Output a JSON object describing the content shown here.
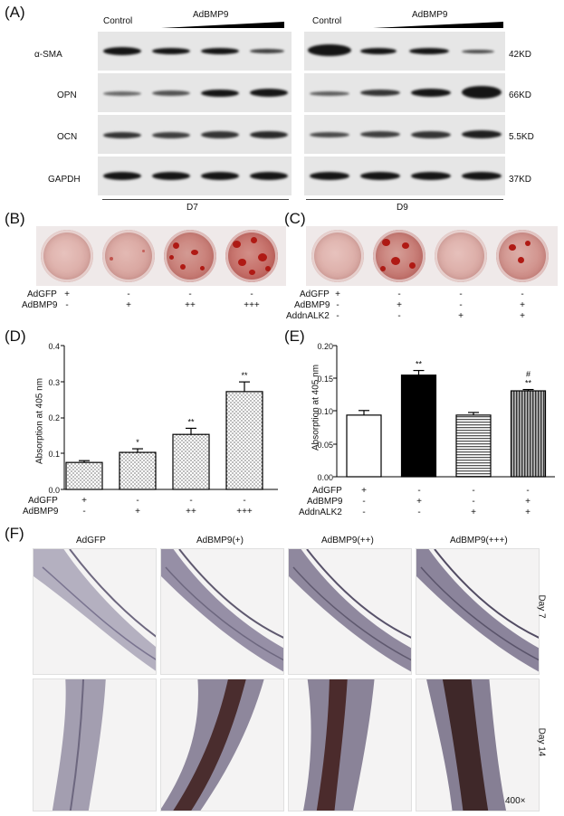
{
  "panel_labels": {
    "A": "(A)",
    "B": "(B)",
    "C": "(C)",
    "D": "(D)",
    "E": "(E)",
    "F": "(F)"
  },
  "western_blot": {
    "control_label": "Control",
    "treatment_label": "AdBMP9",
    "proteins": [
      "α-SMA",
      "OPN",
      "OCN",
      "GAPDH"
    ],
    "sizes": [
      "42KD",
      "66KD",
      "5.5KD",
      "37KD"
    ],
    "days": [
      "D7",
      "D9"
    ]
  },
  "row_labels": {
    "adgfp": "AdGFP",
    "adbmp9": "AdBMP9",
    "addnalk2": "AddnALK2"
  },
  "stain_B": {
    "adgfp": [
      "+",
      "-",
      "-",
      "-"
    ],
    "adbmp9": [
      "-",
      "+",
      "++",
      "+++"
    ]
  },
  "stain_C": {
    "adgfp": [
      "+",
      "-",
      "-",
      "-"
    ],
    "adbmp9": [
      "-",
      "+",
      "-",
      "+"
    ],
    "addnalk2": [
      "-",
      "-",
      "+",
      "+"
    ]
  },
  "chart_data": [
    {
      "panel": "D",
      "type": "bar",
      "ylabel": "Absorption at 405 nm",
      "ylim": [
        0,
        0.4
      ],
      "yticks": [
        "0.0",
        "0.1",
        "0.2",
        "0.3",
        "0.4"
      ],
      "values": [
        0.075,
        0.103,
        0.153,
        0.272
      ],
      "errors": [
        0.005,
        0.01,
        0.017,
        0.027
      ],
      "significance": [
        "",
        "*",
        "**",
        "**"
      ],
      "conditions": {
        "adgfp": [
          "+",
          "-",
          "-",
          "-"
        ],
        "adbmp9": [
          "-",
          "+",
          "++",
          "+++"
        ]
      }
    },
    {
      "panel": "E",
      "type": "bar",
      "ylabel": "Absorption at 405 nm",
      "ylim": [
        0,
        0.2
      ],
      "yticks": [
        "0.00",
        "0.05",
        "0.10",
        "0.15",
        "0.20"
      ],
      "values": [
        0.094,
        0.155,
        0.094,
        0.131
      ],
      "errors": [
        0.007,
        0.007,
        0.004,
        0.002
      ],
      "significance": [
        "",
        "**",
        "",
        "**"
      ],
      "significance2": [
        "",
        "",
        "",
        "#"
      ],
      "conditions": {
        "adgfp": [
          "+",
          "-",
          "-",
          "-"
        ],
        "adbmp9": [
          "-",
          "+",
          "-",
          "+"
        ],
        "addnalk2": [
          "-",
          "-",
          "+",
          "+"
        ]
      }
    }
  ],
  "histology": {
    "columns": [
      "AdGFP",
      "AdBMP9(+)",
      "AdBMP9(++)",
      "AdBMP9(+++)"
    ],
    "rows": [
      "Day 7",
      "Day 14"
    ],
    "magnification": "400×"
  },
  "colors": {
    "mineral_red": "#b01a14",
    "bar_black": "#000000",
    "bar_gray": "#8a8a8a"
  }
}
